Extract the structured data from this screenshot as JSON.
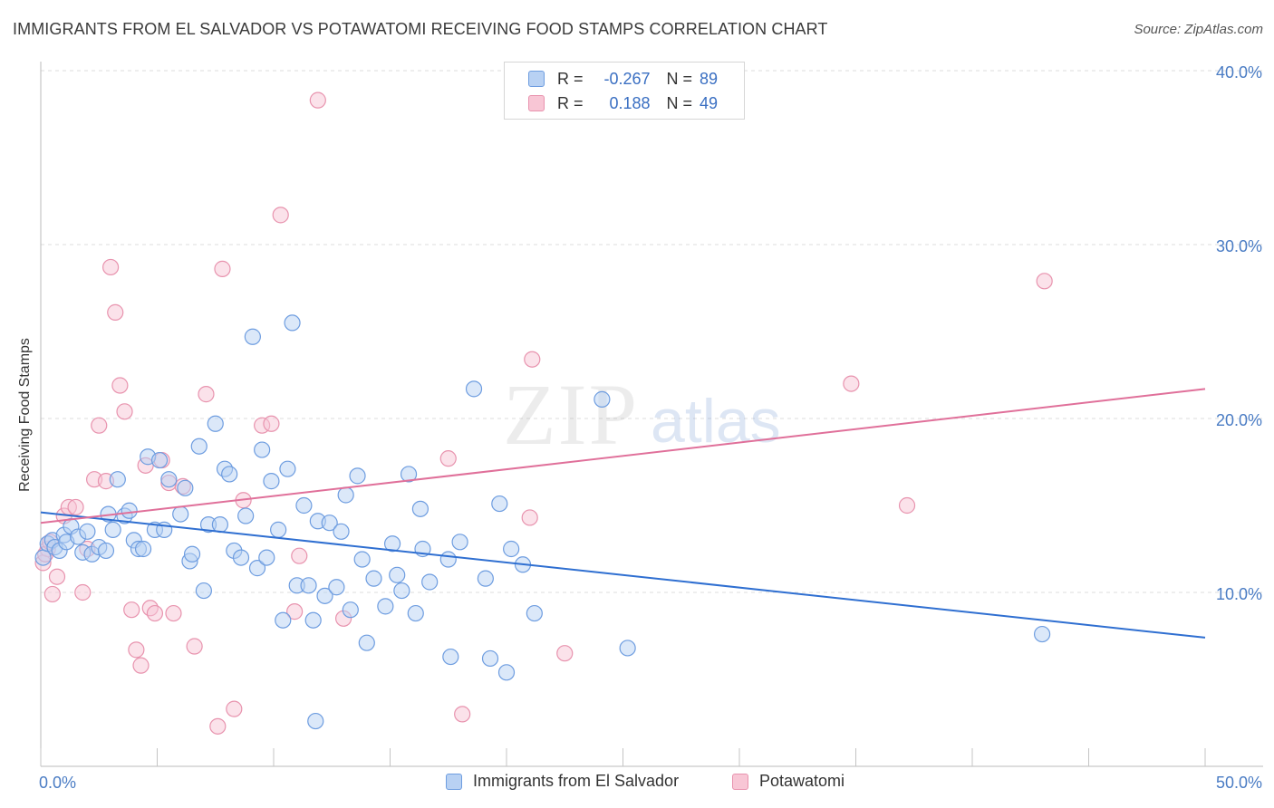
{
  "title": "IMMIGRANTS FROM EL SALVADOR VS POTAWATOMI RECEIVING FOOD STAMPS CORRELATION CHART",
  "source": "Source: ZipAtlas.com",
  "watermark": {
    "zip": "ZIP",
    "atlas": "atlas"
  },
  "legend": {
    "r_label": "R =",
    "n_label": "N =",
    "rows": [
      {
        "r": "-0.267",
        "n": "89"
      },
      {
        "r": "0.188",
        "n": "49"
      }
    ]
  },
  "colors": {
    "blue_fill": "#b8d1f3",
    "blue_stroke": "#6e9de0",
    "blue_line": "#2f6fd1",
    "pink_fill": "#f8c6d5",
    "pink_stroke": "#e893ae",
    "pink_line": "#e0709a",
    "tick_text": "#4a7cc4",
    "grid": "#dddddd"
  },
  "chart_data": {
    "type": "scatter",
    "title": "IMMIGRANTS FROM EL SALVADOR VS POTAWATOMI RECEIVING FOOD STAMPS CORRELATION CHART",
    "xlabel": "",
    "ylabel": "Receiving Food Stamps",
    "xlim": [
      0,
      50
    ],
    "ylim": [
      0,
      40
    ],
    "x_tick_labels": [
      "0.0%",
      "50.0%"
    ],
    "y_ticks": [
      10,
      20,
      30,
      40
    ],
    "y_tick_labels": [
      "10.0%",
      "20.0%",
      "30.0%",
      "40.0%"
    ],
    "grid": true,
    "legend_position": "top-center",
    "series": [
      {
        "name": "Immigrants from El Salvador",
        "color": "#6e9de0",
        "trend": {
          "x": [
            0,
            50
          ],
          "y": [
            14.6,
            7.4
          ]
        },
        "points": [
          [
            0.1,
            12.0
          ],
          [
            0.3,
            12.8
          ],
          [
            0.5,
            13.0
          ],
          [
            0.6,
            12.6
          ],
          [
            0.8,
            12.4
          ],
          [
            1.0,
            13.3
          ],
          [
            1.1,
            12.9
          ],
          [
            1.3,
            13.8
          ],
          [
            1.6,
            13.2
          ],
          [
            1.8,
            12.3
          ],
          [
            2.0,
            13.5
          ],
          [
            2.2,
            12.2
          ],
          [
            2.5,
            12.6
          ],
          [
            2.8,
            12.4
          ],
          [
            2.9,
            14.5
          ],
          [
            3.1,
            13.6
          ],
          [
            3.3,
            16.5
          ],
          [
            3.6,
            14.4
          ],
          [
            3.8,
            14.7
          ],
          [
            4.0,
            13.0
          ],
          [
            4.2,
            12.5
          ],
          [
            4.4,
            12.5
          ],
          [
            4.6,
            17.8
          ],
          [
            4.9,
            13.6
          ],
          [
            5.1,
            17.6
          ],
          [
            5.3,
            13.6
          ],
          [
            5.5,
            16.5
          ],
          [
            6.0,
            14.5
          ],
          [
            6.2,
            16.0
          ],
          [
            6.4,
            11.8
          ],
          [
            6.5,
            12.2
          ],
          [
            6.8,
            18.4
          ],
          [
            7.0,
            10.1
          ],
          [
            7.2,
            13.9
          ],
          [
            7.5,
            19.7
          ],
          [
            7.7,
            13.9
          ],
          [
            7.9,
            17.1
          ],
          [
            8.1,
            16.8
          ],
          [
            8.3,
            12.4
          ],
          [
            8.6,
            12.0
          ],
          [
            8.8,
            14.4
          ],
          [
            9.1,
            24.7
          ],
          [
            9.3,
            11.4
          ],
          [
            9.5,
            18.2
          ],
          [
            9.7,
            12.0
          ],
          [
            9.9,
            16.4
          ],
          [
            10.2,
            13.6
          ],
          [
            10.4,
            8.4
          ],
          [
            10.6,
            17.1
          ],
          [
            10.8,
            25.5
          ],
          [
            11.0,
            10.4
          ],
          [
            11.3,
            15.0
          ],
          [
            11.5,
            10.4
          ],
          [
            11.7,
            8.4
          ],
          [
            11.9,
            14.1
          ],
          [
            12.2,
            9.8
          ],
          [
            12.4,
            14.0
          ],
          [
            12.7,
            10.3
          ],
          [
            12.9,
            13.5
          ],
          [
            13.1,
            15.6
          ],
          [
            13.3,
            9.0
          ],
          [
            13.6,
            16.7
          ],
          [
            13.8,
            11.9
          ],
          [
            14.0,
            7.1
          ],
          [
            14.3,
            10.8
          ],
          [
            14.8,
            9.2
          ],
          [
            15.1,
            12.8
          ],
          [
            15.3,
            11.0
          ],
          [
            15.5,
            10.1
          ],
          [
            15.8,
            16.8
          ],
          [
            16.1,
            8.8
          ],
          [
            16.3,
            14.8
          ],
          [
            16.4,
            12.5
          ],
          [
            16.7,
            10.6
          ],
          [
            17.5,
            11.9
          ],
          [
            17.6,
            6.3
          ],
          [
            18.0,
            12.9
          ],
          [
            18.6,
            21.7
          ],
          [
            19.1,
            10.8
          ],
          [
            19.3,
            6.2
          ],
          [
            19.7,
            15.1
          ],
          [
            20.0,
            5.4
          ],
          [
            20.2,
            12.5
          ],
          [
            20.7,
            11.6
          ],
          [
            21.2,
            8.8
          ],
          [
            24.1,
            21.1
          ],
          [
            25.2,
            6.8
          ],
          [
            43.0,
            7.6
          ],
          [
            11.8,
            2.6
          ]
        ]
      },
      {
        "name": "Potawatomi",
        "color": "#e893ae",
        "trend": {
          "x": [
            0,
            50
          ],
          "y": [
            14.0,
            21.7
          ]
        },
        "points": [
          [
            0.1,
            11.7
          ],
          [
            0.3,
            12.5
          ],
          [
            0.5,
            9.9
          ],
          [
            0.7,
            10.9
          ],
          [
            1.0,
            14.4
          ],
          [
            1.2,
            14.9
          ],
          [
            1.5,
            14.9
          ],
          [
            1.8,
            10.0
          ],
          [
            2.0,
            12.5
          ],
          [
            2.3,
            16.5
          ],
          [
            2.5,
            19.6
          ],
          [
            2.8,
            16.4
          ],
          [
            3.0,
            28.7
          ],
          [
            3.2,
            26.1
          ],
          [
            3.4,
            21.9
          ],
          [
            3.6,
            20.4
          ],
          [
            3.9,
            9.0
          ],
          [
            4.1,
            6.7
          ],
          [
            4.3,
            5.8
          ],
          [
            4.5,
            17.3
          ],
          [
            4.7,
            9.1
          ],
          [
            4.9,
            8.8
          ],
          [
            5.2,
            17.6
          ],
          [
            5.5,
            16.3
          ],
          [
            5.7,
            8.8
          ],
          [
            6.1,
            16.1
          ],
          [
            6.6,
            6.9
          ],
          [
            7.1,
            21.4
          ],
          [
            7.6,
            2.3
          ],
          [
            7.8,
            28.6
          ],
          [
            8.3,
            3.3
          ],
          [
            8.7,
            15.3
          ],
          [
            9.5,
            19.6
          ],
          [
            9.9,
            19.7
          ],
          [
            10.3,
            31.7
          ],
          [
            10.9,
            8.9
          ],
          [
            11.1,
            12.1
          ],
          [
            11.9,
            38.3
          ],
          [
            13.0,
            8.5
          ],
          [
            17.5,
            17.7
          ],
          [
            18.1,
            3.0
          ],
          [
            21.0,
            14.3
          ],
          [
            21.1,
            23.4
          ],
          [
            22.5,
            6.5
          ],
          [
            34.8,
            22.0
          ],
          [
            37.2,
            15.0
          ],
          [
            43.1,
            27.9
          ],
          [
            0.2,
            12.2
          ],
          [
            0.4,
            12.9
          ]
        ]
      }
    ]
  },
  "bottom_legend": [
    "Immigrants from El Salvador",
    "Potawatomi"
  ]
}
